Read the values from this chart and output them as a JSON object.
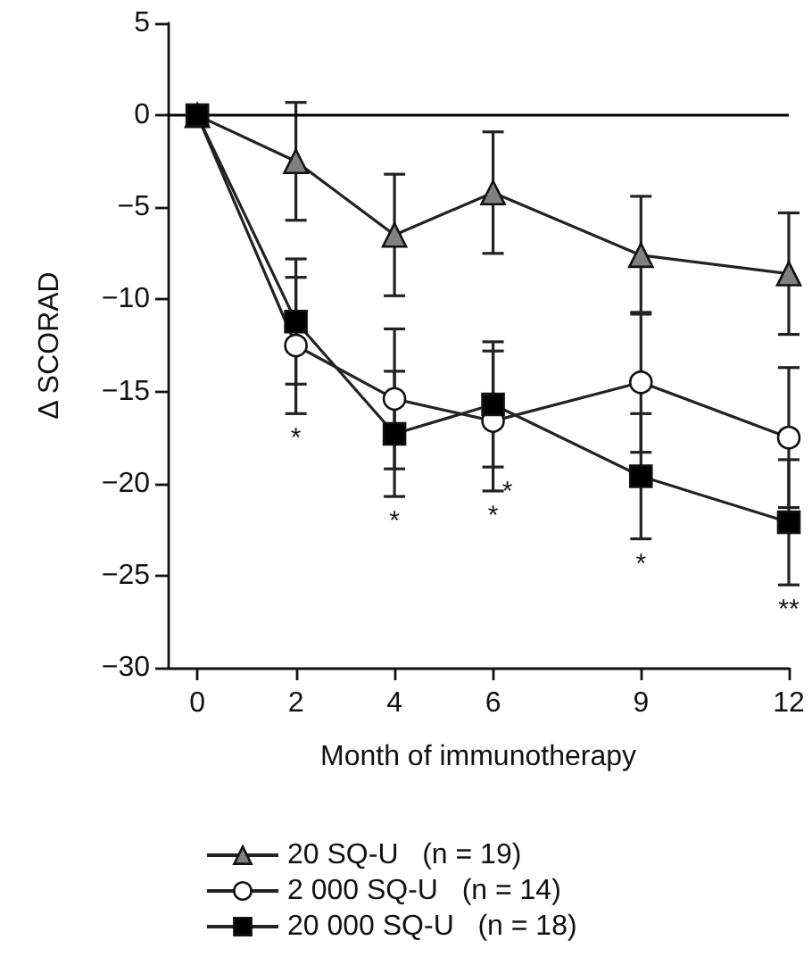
{
  "chart_data": {
    "type": "line",
    "xlabel": "Month of immunotherapy",
    "ylabel": "Δ SCORAD",
    "x": [
      0,
      2,
      4,
      6,
      9,
      12
    ],
    "series": [
      {
        "name": "20 SQ-U   (n = 19)",
        "color": "#808080",
        "marker": "triangle",
        "values": [
          0,
          -2.5,
          -6.5,
          -4.2,
          -7.6,
          -8.6
        ],
        "errors": [
          null,
          3.2,
          3.3,
          3.3,
          3.2,
          3.3
        ]
      },
      {
        "name": "2 000 SQ-U   (n = 14)",
        "color": "#ffffff",
        "marker": "circle",
        "values": [
          0,
          -12.5,
          -15.4,
          -16.6,
          -14.5,
          -17.5
        ],
        "errors": [
          null,
          3.7,
          3.8,
          3.8,
          3.8,
          3.8
        ]
      },
      {
        "name": "20 000 SQ-U   (n = 18)",
        "color": "#000000",
        "marker": "square",
        "values": [
          0,
          -11.2,
          -17.3,
          -15.7,
          -19.6,
          -22.1
        ],
        "errors": [
          null,
          3.4,
          3.4,
          3.4,
          3.4,
          3.4
        ]
      }
    ],
    "xlim": [
      -0.6,
      12
    ],
    "xticks": [
      0,
      2,
      4,
      6,
      9,
      12
    ],
    "ylim": [
      -30,
      5
    ],
    "yticks": [
      {
        "value": -30,
        "label": "−30"
      },
      {
        "value": -25,
        "label": "−25"
      },
      {
        "value": -20,
        "label": "−20"
      },
      {
        "value": -15,
        "label": "−15"
      },
      {
        "value": -10,
        "label": "−10"
      },
      {
        "value": -5,
        "label": "−5"
      },
      0,
      5
    ],
    "ref_lines": [
      {
        "axis": "y",
        "value": 0,
        "color": "#000000"
      }
    ],
    "annotations": [
      "*",
      "*",
      "*",
      "*",
      "*",
      "**"
    ],
    "grid": false,
    "legend": "bottom"
  }
}
